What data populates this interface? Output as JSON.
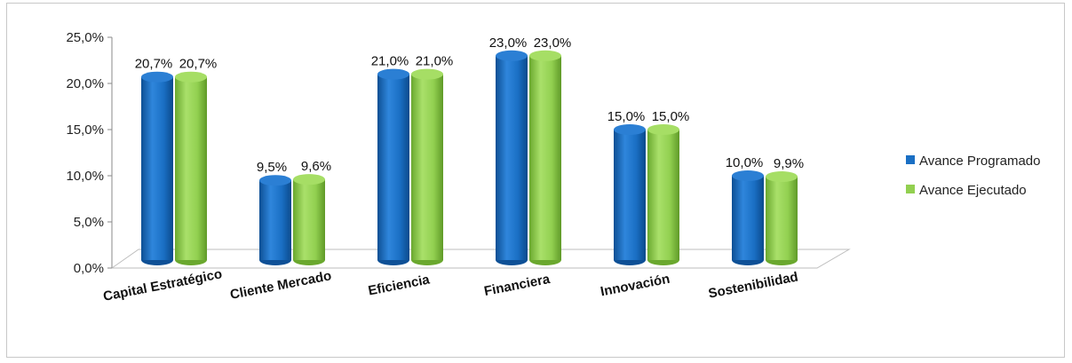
{
  "chart_data": {
    "type": "bar",
    "title": "",
    "xlabel": "",
    "ylabel": "",
    "categories": [
      "Capital Estratégico",
      "Cliente Mercado",
      "Eficiencia",
      "Financiera",
      "Innovación",
      "Sostenibilidad"
    ],
    "series": [
      {
        "name": "Avance Programado",
        "values": [
          20.7,
          9.5,
          21.0,
          23.0,
          15.0,
          10.0
        ],
        "labels": [
          "20,7%",
          "9,5%",
          "21,0%",
          "23,0%",
          "15,0%",
          "10,0%"
        ],
        "color": "#1a6fc4"
      },
      {
        "name": "Avance Ejecutado",
        "values": [
          20.7,
          9.6,
          21.0,
          23.0,
          15.0,
          9.9
        ],
        "labels": [
          "20,7%",
          "9,6%",
          "21,0%",
          "23,0%",
          "15,0%",
          "9,9%"
        ],
        "color": "#92d050"
      }
    ],
    "ylim": [
      0,
      25
    ],
    "yticks": [
      0,
      5,
      10,
      15,
      20,
      25
    ],
    "ytick_labels": [
      "0,0%",
      "5,0%",
      "10,0%",
      "15,0%",
      "20,0%",
      "25,0%"
    ],
    "legend_position": "right",
    "style": "3d-cylinder",
    "grid": false
  }
}
